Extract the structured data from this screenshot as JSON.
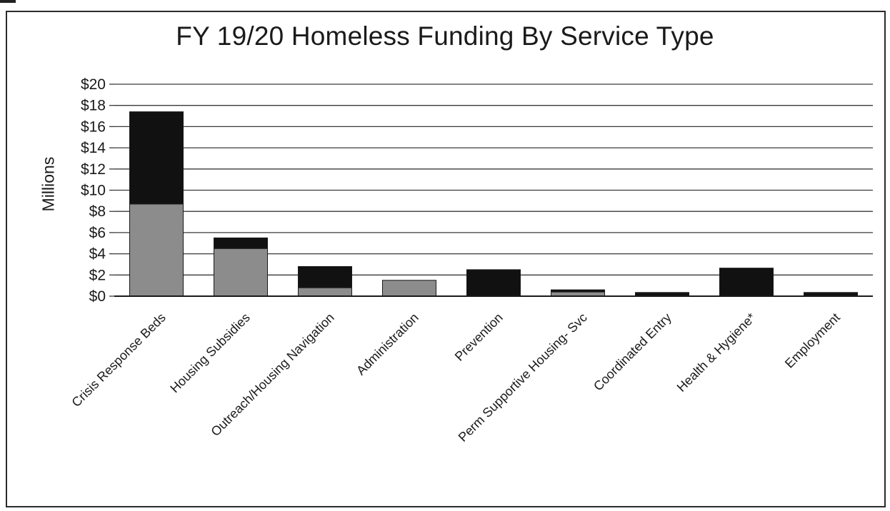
{
  "chart_data": {
    "type": "bar",
    "stacked": true,
    "title": "FY 19/20 Homeless Funding By Service Type",
    "ylabel": "Millions",
    "xlabel": "",
    "ylim": [
      0,
      20
    ],
    "y_ticks": [
      0,
      2,
      4,
      6,
      8,
      10,
      12,
      14,
      16,
      18,
      20
    ],
    "y_tick_labels": [
      "$0",
      "$2",
      "$4",
      "$6",
      "$8",
      "$10",
      "$12",
      "$14",
      "$16",
      "$18",
      "$20"
    ],
    "grid": true,
    "categories": [
      "Crisis Response Beds",
      "Housing Subsidies",
      "Outreach/Housing Navigation",
      "Administration",
      "Prevention",
      "Perm Supportive Housing- Svc",
      "Coordinated Entry",
      "Health & Hygiene*",
      "Employment"
    ],
    "series": [
      {
        "values": [
          8.7,
          4.5,
          0.8,
          1.5,
          0.0,
          0.4,
          0.0,
          0.0,
          0.0
        ],
        "color": "#8c8c8c"
      },
      {
        "values": [
          8.7,
          1.0,
          2.0,
          0.0,
          2.5,
          0.2,
          0.35,
          2.65,
          0.35
        ],
        "color": "#111111"
      }
    ]
  }
}
